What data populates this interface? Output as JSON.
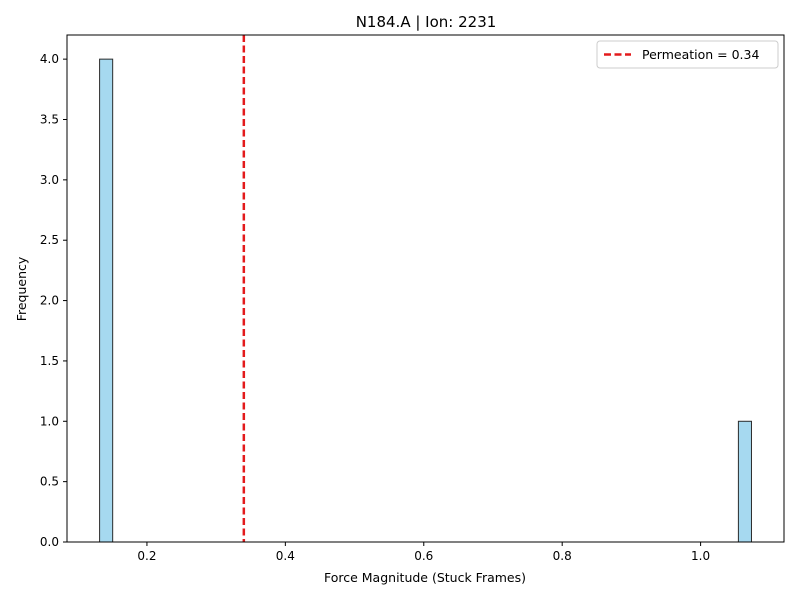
{
  "chart_data": {
    "type": "bar",
    "title": "N184.A | Ion: 2231",
    "xlabel": "Force Magnitude (Stuck Frames)",
    "ylabel": "Frequency",
    "xlim": [
      0.0845,
      1.1205
    ],
    "ylim": [
      0,
      4.2
    ],
    "xticks": [
      0.2,
      0.4,
      0.6,
      0.8,
      1.0
    ],
    "xtick_labels": [
      "0.2",
      "0.4",
      "0.6",
      "0.8",
      "1.0"
    ],
    "yticks": [
      0.0,
      0.5,
      1.0,
      1.5,
      2.0,
      2.5,
      3.0,
      3.5,
      4.0
    ],
    "ytick_labels": [
      "0.0",
      "0.5",
      "1.0",
      "1.5",
      "2.0",
      "2.5",
      "3.0",
      "3.5",
      "4.0"
    ],
    "bins": [
      {
        "x0": 0.1316,
        "x1": 0.1505,
        "count": 4
      },
      {
        "x0": 1.0546,
        "x1": 1.0735,
        "count": 1
      }
    ],
    "bar_color": "#a6d9f0",
    "bar_edge_color": "#2b2b2b",
    "reference_line": {
      "x": 0.34,
      "label": "Permeation = 0.34",
      "color": "#e31a1c",
      "style": "dashed"
    },
    "legend_placement": "top-right",
    "grid": false
  }
}
